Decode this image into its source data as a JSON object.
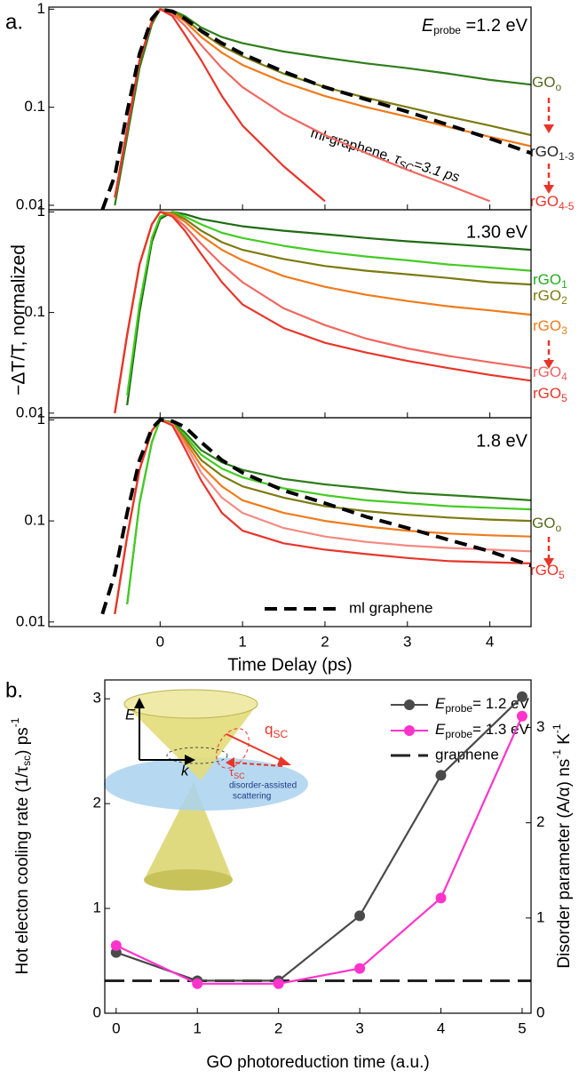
{
  "panel_a": {
    "label": "a.",
    "y_label": "−ΔT/T, normalized"
  },
  "chart_data": [
    {
      "type": "line",
      "log_y": true,
      "xlim": [
        -1.35,
        4.5
      ],
      "xticks": [
        0,
        1,
        2,
        3,
        4
      ],
      "ylim": [
        0.009,
        1.05
      ],
      "yticks": [
        0.01,
        0.1,
        1
      ],
      "x": [
        -0.7,
        -0.55,
        -0.4,
        -0.25,
        -0.1,
        0,
        0.15,
        0.3,
        0.5,
        0.75,
        1,
        1.5,
        2,
        2.5,
        3,
        3.5,
        4,
        4.5
      ],
      "series": [
        {
          "color": "#2e7d1a",
          "values": [
            null,
            0.01,
            0.05,
            0.25,
            0.7,
            1,
            0.97,
            0.85,
            0.65,
            0.52,
            0.45,
            0.37,
            0.32,
            0.28,
            0.25,
            0.22,
            0.19,
            0.17
          ]
        },
        {
          "color": "#7d7a10",
          "values": [
            null,
            0.012,
            0.06,
            0.3,
            0.75,
            1,
            0.95,
            0.8,
            0.58,
            0.42,
            0.33,
            0.22,
            0.16,
            0.125,
            0.1,
            0.08,
            0.065,
            0.052
          ]
        },
        {
          "color": "#f07a1a",
          "values": [
            null,
            0.012,
            0.06,
            0.3,
            0.75,
            1,
            0.93,
            0.75,
            0.52,
            0.36,
            0.27,
            0.18,
            0.13,
            0.1,
            0.08,
            0.063,
            0.05,
            0.04
          ]
        },
        {
          "color": "#f06860",
          "values": [
            null,
            0.012,
            0.06,
            0.3,
            0.75,
            1,
            0.9,
            0.68,
            0.43,
            0.25,
            0.16,
            0.085,
            0.052,
            0.034,
            0.023,
            0.016,
            0.011,
            null
          ]
        },
        {
          "color": "#e8352a",
          "values": [
            null,
            0.012,
            0.06,
            0.3,
            0.75,
            1,
            0.85,
            0.55,
            0.3,
            0.13,
            0.065,
            0.025,
            0.011,
            null,
            null,
            null,
            null,
            null
          ]
        },
        {
          "color": "#000000",
          "dash": true,
          "values": [
            0.009,
            0.02,
            0.09,
            0.35,
            0.8,
            1,
            0.95,
            0.8,
            0.6,
            0.45,
            0.35,
            0.23,
            0.16,
            0.12,
            0.09,
            0.066,
            0.048,
            0.034
          ]
        }
      ],
      "energy": {
        "symbol": "E",
        "sub": "probe",
        "text": " =1.2 eV"
      },
      "fit_note": {
        "text": "ml-graphene, ",
        "symbol": "τ",
        "sub": "SC",
        "value": "=3.1 ps"
      },
      "labels": [
        {
          "text": "GO",
          "sub": "o"
        },
        {
          "text": "rGO",
          "sub": "1-3"
        },
        {
          "text": "rGO",
          "sub": "4-5"
        }
      ]
    },
    {
      "type": "line",
      "log_y": true,
      "xlim": [
        -1.35,
        4.5
      ],
      "xticks": [
        0,
        1,
        2,
        3,
        4
      ],
      "ylim": [
        0.009,
        1.05
      ],
      "yticks": [
        0.01,
        0.1,
        1
      ],
      "x": [
        -0.7,
        -0.55,
        -0.4,
        -0.25,
        -0.1,
        0,
        0.15,
        0.3,
        0.5,
        0.75,
        1,
        1.5,
        2,
        2.5,
        3,
        3.5,
        4,
        4.5
      ],
      "series": [
        {
          "color": "#1f6b12",
          "values": [
            null,
            null,
            0.012,
            0.1,
            0.5,
            0.85,
            1,
            0.95,
            0.85,
            0.78,
            0.72,
            0.65,
            0.6,
            0.55,
            0.51,
            0.48,
            0.45,
            0.42
          ]
        },
        {
          "color": "#44cc22",
          "values": [
            null,
            null,
            0.015,
            0.12,
            0.55,
            0.9,
            1,
            0.9,
            0.75,
            0.62,
            0.55,
            0.46,
            0.4,
            0.36,
            0.33,
            0.3,
            0.28,
            0.26
          ]
        },
        {
          "color": "#7d7a10",
          "values": [
            null,
            0.01,
            0.06,
            0.3,
            0.75,
            1,
            0.97,
            0.85,
            0.65,
            0.5,
            0.42,
            0.34,
            0.29,
            0.26,
            0.24,
            0.22,
            0.2,
            0.19
          ]
        },
        {
          "color": "#f07a1a",
          "values": [
            null,
            0.01,
            0.06,
            0.3,
            0.75,
            1,
            0.95,
            0.8,
            0.58,
            0.42,
            0.33,
            0.23,
            0.18,
            0.15,
            0.13,
            0.115,
            0.105,
            0.095
          ]
        },
        {
          "color": "#f06860",
          "values": [
            null,
            0.01,
            0.06,
            0.3,
            0.75,
            1,
            0.92,
            0.72,
            0.48,
            0.3,
            0.2,
            0.11,
            0.075,
            0.055,
            0.044,
            0.037,
            0.032,
            0.028
          ]
        },
        {
          "color": "#e8352a",
          "values": [
            null,
            0.01,
            0.06,
            0.3,
            0.75,
            1,
            0.9,
            0.65,
            0.38,
            0.2,
            0.12,
            0.07,
            0.05,
            0.04,
            0.033,
            0.028,
            0.024,
            0.021
          ]
        }
      ],
      "energy": {
        "text": "1.30 eV"
      },
      "labels": [
        {
          "text": "rGO",
          "sub": "1"
        },
        {
          "text": "rGO",
          "sub": "2"
        },
        {
          "text": "rGO",
          "sub": "3"
        },
        {
          "text": "rGO",
          "sub": "4"
        },
        {
          "text": "rGO",
          "sub": "5"
        }
      ]
    },
    {
      "type": "line",
      "log_y": true,
      "xlim": [
        -1.35,
        4.5
      ],
      "xticks": [
        0,
        1,
        2,
        3,
        4
      ],
      "ylim": [
        0.009,
        1.05
      ],
      "yticks": [
        0.01,
        0.1,
        1
      ],
      "x": [
        -0.7,
        -0.55,
        -0.4,
        -0.25,
        -0.1,
        0,
        0.15,
        0.3,
        0.5,
        0.75,
        1,
        1.5,
        2,
        2.5,
        3,
        3.5,
        4,
        4.5
      ],
      "series": [
        {
          "color": "#2e7d1a",
          "values": [
            null,
            null,
            0.015,
            0.15,
            0.6,
            1,
            0.95,
            0.75,
            0.5,
            0.38,
            0.32,
            0.26,
            0.23,
            0.21,
            0.19,
            0.18,
            0.17,
            0.16
          ]
        },
        {
          "color": "#44cc22",
          "values": [
            null,
            null,
            0.015,
            0.15,
            0.6,
            1,
            0.93,
            0.7,
            0.45,
            0.33,
            0.27,
            0.21,
            0.18,
            0.16,
            0.15,
            0.14,
            0.135,
            0.13
          ]
        },
        {
          "color": "#7d7a10",
          "values": [
            null,
            0.012,
            0.07,
            0.32,
            0.78,
            1,
            0.92,
            0.66,
            0.4,
            0.28,
            0.22,
            0.17,
            0.14,
            0.125,
            0.115,
            0.108,
            0.103,
            0.1
          ]
        },
        {
          "color": "#f07a1a",
          "values": [
            null,
            0.012,
            0.07,
            0.32,
            0.78,
            1,
            0.91,
            0.62,
            0.35,
            0.22,
            0.16,
            0.12,
            0.1,
            0.088,
            0.08,
            0.075,
            0.072,
            0.07
          ]
        },
        {
          "color": "#f48a80",
          "values": [
            null,
            0.012,
            0.07,
            0.32,
            0.78,
            1,
            0.9,
            0.58,
            0.3,
            0.17,
            0.12,
            0.085,
            0.07,
            0.062,
            0.057,
            0.054,
            0.052,
            0.05
          ]
        },
        {
          "color": "#e8352a",
          "values": [
            null,
            0.012,
            0.07,
            0.32,
            0.78,
            1,
            0.88,
            0.52,
            0.25,
            0.12,
            0.08,
            0.06,
            0.052,
            0.047,
            0.043,
            0.04,
            0.039,
            0.038
          ]
        },
        {
          "name": "ml graphene",
          "color": "#000000",
          "dash": true,
          "values": [
            0.012,
            0.03,
            0.12,
            0.4,
            0.82,
            1,
            0.97,
            0.85,
            0.6,
            0.4,
            0.3,
            0.2,
            0.15,
            0.11,
            0.085,
            0.065,
            0.05,
            0.036
          ]
        }
      ],
      "energy": {
        "text": "1.8 eV"
      },
      "labels": [
        {
          "text": "GO",
          "sub": "o"
        },
        {
          "text": "rGO",
          "sub": "5"
        }
      ],
      "x_label": "Time Delay (ps)"
    },
    {
      "type": "line",
      "label": "b.",
      "xlim": [
        -0.14,
        5.11
      ],
      "xticks": [
        0,
        1,
        2,
        3,
        4,
        5
      ],
      "ylim": [
        0,
        3.18
      ],
      "yticks": [
        0,
        1,
        2,
        3
      ],
      "y2lim": [
        0,
        3.5
      ],
      "y2ticks": [
        0,
        1,
        2,
        3
      ],
      "x": [
        0,
        1,
        2,
        3,
        4,
        5
      ],
      "series": [
        {
          "name": {
            "symbol": "E",
            "sub": "probe",
            "text": "= 1.2 eV"
          },
          "color": "#4a4a4a",
          "values": [
            0.58,
            0.31,
            0.31,
            0.93,
            2.27,
            3.02
          ]
        },
        {
          "name": {
            "symbol": "E",
            "sub": "probe",
            "text": "= 1.3 eV"
          },
          "color": "#ff33cc",
          "axis": "y2",
          "values": [
            0.71,
            0.31,
            0.31,
            0.47,
            1.21,
            3.12
          ]
        }
      ],
      "reference": {
        "name": "graphene",
        "value": 0.31
      },
      "x_label": "GO photoreduction time (a.u.)",
      "y_label": {
        "text": "Hot electon cooling rate (1/τ",
        "sub": "sc",
        "text2": ") ps",
        "sup": "-1"
      },
      "y2_label": {
        "text": "Disorder parameter (A/α) ns",
        "sup": "-1",
        "text2": " K",
        "sup2": "-1"
      },
      "inset": {
        "e_axis": "E",
        "k_axis": "k",
        "q": {
          "text": "q",
          "sub": "SC"
        },
        "tau": {
          "text": "τ",
          "sub": "SC"
        },
        "scattering": [
          "disorder-assisted",
          "scattering"
        ]
      }
    }
  ]
}
